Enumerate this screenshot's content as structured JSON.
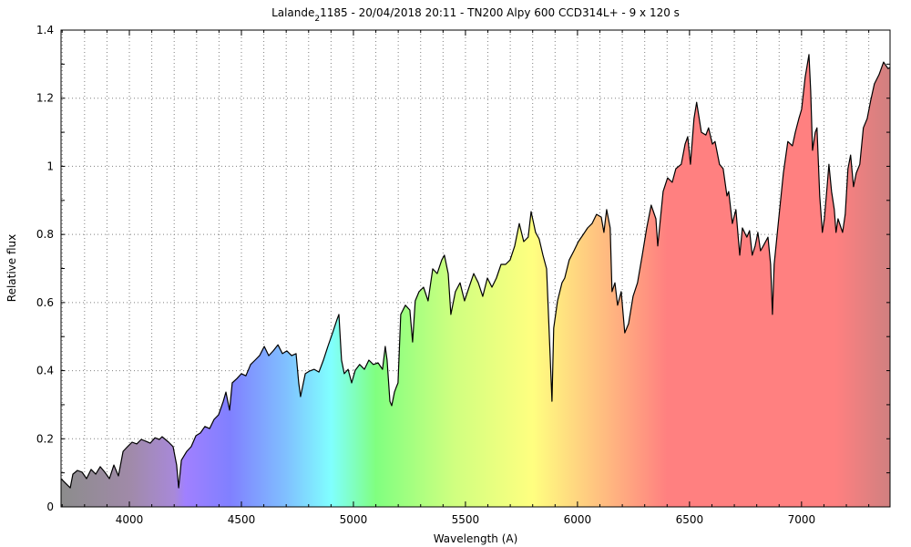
{
  "chart_data": {
    "type": "area",
    "title_parts": [
      "Lalande",
      "2",
      "1185 - 20/04/2018 20:11 - TN200 Alpy 600 CCD314L+ - 9 x 120 s"
    ],
    "xlabel": "Wavelength (A)",
    "ylabel": "Relative flux",
    "xlim": [
      3695,
      7395
    ],
    "ylim": [
      0,
      1.4
    ],
    "xticks": [
      4000,
      4500,
      5000,
      5500,
      6000,
      6500,
      7000
    ],
    "xtick_labels": [
      "4000",
      "4500",
      "5000",
      "5500",
      "6000",
      "6500",
      "7000"
    ],
    "yticks": [
      0,
      0.2,
      0.4,
      0.6,
      0.8,
      1,
      1.2,
      1.4
    ],
    "ytick_labels": [
      "0",
      "0.2",
      "0.4",
      "0.6",
      "0.8",
      "1",
      "1.2",
      "1.4"
    ],
    "x_grid_step": 100,
    "y_minor_step": 0.1,
    "grid": true,
    "fill_colors": [
      {
        "wl": 3695,
        "color": "#8c8c8c"
      },
      {
        "wl": 4000,
        "color": "#a08aa8"
      },
      {
        "wl": 4200,
        "color": "#a889d8"
      },
      {
        "wl": 4250,
        "color": "#a080ff"
      },
      {
        "wl": 4450,
        "color": "#8080ff"
      },
      {
        "wl": 4700,
        "color": "#80c0ff"
      },
      {
        "wl": 4900,
        "color": "#80ffff"
      },
      {
        "wl": 5100,
        "color": "#80ff80"
      },
      {
        "wl": 5450,
        "color": "#d0ff80"
      },
      {
        "wl": 5800,
        "color": "#ffff80"
      },
      {
        "wl": 6100,
        "color": "#ffc080"
      },
      {
        "wl": 6400,
        "color": "#ff8080"
      },
      {
        "wl": 7150,
        "color": "#ff8080"
      },
      {
        "wl": 7395,
        "color": "#d08080"
      }
    ],
    "line_color": "#000000",
    "x": [
      3695,
      3715,
      3736,
      3748,
      3768,
      3789,
      3809,
      3829,
      3850,
      3870,
      3890,
      3911,
      3931,
      3951,
      3972,
      3992,
      4012,
      4033,
      4053,
      4073,
      4093,
      4114,
      4134,
      4146,
      4175,
      4195,
      4211,
      4220,
      4232,
      4256,
      4276,
      4297,
      4317,
      4337,
      4358,
      4378,
      4398,
      4419,
      4431,
      4447,
      4459,
      4480,
      4500,
      4520,
      4541,
      4561,
      4581,
      4602,
      4622,
      4642,
      4663,
      4683,
      4703,
      4724,
      4744,
      4756,
      4764,
      4785,
      4805,
      4825,
      4846,
      4866,
      4886,
      4907,
      4927,
      4935,
      4947,
      4959,
      4976,
      4992,
      5008,
      5028,
      5049,
      5069,
      5089,
      5110,
      5130,
      5142,
      5150,
      5163,
      5171,
      5183,
      5191,
      5199,
      5211,
      5232,
      5252,
      5264,
      5276,
      5293,
      5313,
      5333,
      5354,
      5374,
      5394,
      5406,
      5423,
      5435,
      5455,
      5476,
      5496,
      5516,
      5537,
      5557,
      5577,
      5598,
      5618,
      5638,
      5659,
      5679,
      5699,
      5720,
      5740,
      5760,
      5780,
      5793,
      5813,
      5829,
      5846,
      5862,
      5878,
      5886,
      5894,
      5911,
      5931,
      5943,
      5963,
      5984,
      6004,
      6024,
      6045,
      6065,
      6085,
      6106,
      6118,
      6130,
      6146,
      6154,
      6167,
      6179,
      6195,
      6211,
      6228,
      6248,
      6268,
      6289,
      6309,
      6329,
      6350,
      6358,
      6382,
      6402,
      6423,
      6439,
      6463,
      6480,
      6492,
      6504,
      6520,
      6532,
      6553,
      6573,
      6585,
      6602,
      6614,
      6634,
      6650,
      6667,
      6675,
      6691,
      6707,
      6724,
      6736,
      6756,
      6768,
      6780,
      6793,
      6805,
      6817,
      6829,
      6850,
      6862,
      6870,
      6878,
      6898,
      6919,
      6939,
      6959,
      6972,
      6988,
      7000,
      7016,
      7033,
      7041,
      7049,
      7061,
      7069,
      7081,
      7093,
      7102,
      7114,
      7122,
      7134,
      7146,
      7154,
      7163,
      7183,
      7195,
      7207,
      7219,
      7232,
      7244,
      7260,
      7276,
      7293,
      7309,
      7325,
      7346,
      7366,
      7386,
      7395
    ],
    "y": [
      0.083,
      0.07,
      0.056,
      0.096,
      0.107,
      0.102,
      0.083,
      0.11,
      0.096,
      0.118,
      0.102,
      0.083,
      0.123,
      0.091,
      0.163,
      0.177,
      0.19,
      0.185,
      0.198,
      0.193,
      0.187,
      0.203,
      0.198,
      0.206,
      0.19,
      0.177,
      0.123,
      0.056,
      0.137,
      0.163,
      0.177,
      0.209,
      0.217,
      0.236,
      0.23,
      0.257,
      0.27,
      0.31,
      0.337,
      0.284,
      0.364,
      0.377,
      0.391,
      0.385,
      0.418,
      0.431,
      0.444,
      0.471,
      0.444,
      0.458,
      0.476,
      0.45,
      0.458,
      0.444,
      0.45,
      0.364,
      0.324,
      0.391,
      0.399,
      0.404,
      0.396,
      0.431,
      0.471,
      0.511,
      0.551,
      0.565,
      0.431,
      0.391,
      0.404,
      0.364,
      0.401,
      0.418,
      0.404,
      0.431,
      0.418,
      0.423,
      0.404,
      0.471,
      0.431,
      0.31,
      0.297,
      0.337,
      0.351,
      0.364,
      0.565,
      0.592,
      0.578,
      0.484,
      0.605,
      0.632,
      0.645,
      0.605,
      0.699,
      0.685,
      0.725,
      0.739,
      0.685,
      0.565,
      0.632,
      0.658,
      0.605,
      0.645,
      0.685,
      0.658,
      0.618,
      0.672,
      0.645,
      0.672,
      0.712,
      0.712,
      0.725,
      0.766,
      0.832,
      0.779,
      0.792,
      0.867,
      0.806,
      0.787,
      0.739,
      0.699,
      0.444,
      0.31,
      0.525,
      0.605,
      0.658,
      0.672,
      0.725,
      0.752,
      0.779,
      0.798,
      0.819,
      0.832,
      0.859,
      0.851,
      0.806,
      0.873,
      0.819,
      0.632,
      0.658,
      0.592,
      0.632,
      0.511,
      0.538,
      0.618,
      0.658,
      0.739,
      0.819,
      0.886,
      0.846,
      0.766,
      0.926,
      0.966,
      0.953,
      0.993,
      1.006,
      1.065,
      1.087,
      1.006,
      1.14,
      1.188,
      1.1,
      1.092,
      1.113,
      1.065,
      1.073,
      1.006,
      0.993,
      0.913,
      0.926,
      0.832,
      0.873,
      0.739,
      0.819,
      0.792,
      0.811,
      0.739,
      0.766,
      0.806,
      0.752,
      0.766,
      0.792,
      0.712,
      0.565,
      0.712,
      0.846,
      0.98,
      1.073,
      1.06,
      1.1,
      1.14,
      1.167,
      1.261,
      1.328,
      1.221,
      1.047,
      1.1,
      1.113,
      0.913,
      0.806,
      0.846,
      0.94,
      1.006,
      0.926,
      0.873,
      0.806,
      0.846,
      0.806,
      0.859,
      0.993,
      1.033,
      0.94,
      0.98,
      1.006,
      1.113,
      1.14,
      1.194,
      1.242,
      1.269,
      1.306,
      1.287,
      1.29
    ]
  }
}
